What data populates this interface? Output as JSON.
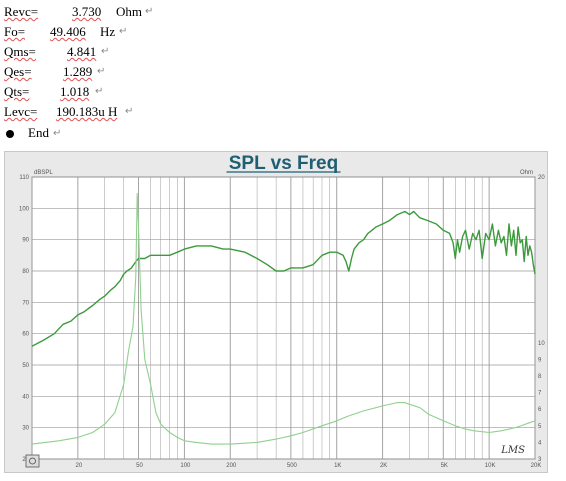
{
  "params": {
    "revc": {
      "key": "Revc=",
      "value": "3.730",
      "unit": "Ohm"
    },
    "fo": {
      "key": "Fo=",
      "value": "49.406",
      "unit": "Hz"
    },
    "qms": {
      "key": "Qms=",
      "value": "4.841"
    },
    "qes": {
      "key": "Qes=",
      "value": "1.289"
    },
    "qts": {
      "key": "Qts=",
      "value": "1.018"
    },
    "levc": {
      "key": "Levc=",
      "value": "190.183u H"
    }
  },
  "end_label": "End",
  "pilcrow": "↵",
  "colors": {
    "spl": "#3c9a3c",
    "impedance": "#8fd08f",
    "grid": "#9a9a9a",
    "title": "#1f5f73",
    "background": "#e9e9e9"
  },
  "chart_data": {
    "type": "line",
    "title": "SPL vs Freq",
    "ylabel_left": "dBSPL",
    "ylabel_right": "Ohm",
    "x_scale": "log",
    "xlim": [
      10,
      20000
    ],
    "ylim_left": [
      20,
      110
    ],
    "ylim_right": [
      3,
      20
    ],
    "grid": true,
    "x_ticks": [
      {
        "value": 10,
        "label": "Hz"
      },
      {
        "value": 20,
        "label": "20"
      },
      {
        "value": 50,
        "label": "50"
      },
      {
        "value": 100,
        "label": "100"
      },
      {
        "value": 200,
        "label": "200"
      },
      {
        "value": 500,
        "label": "500"
      },
      {
        "value": 1000,
        "label": "1K"
      },
      {
        "value": 2000,
        "label": "2K"
      },
      {
        "value": 5000,
        "label": "5K"
      },
      {
        "value": 10000,
        "label": "10K"
      },
      {
        "value": 20000,
        "label": "20K"
      }
    ],
    "y_ticks_left": [
      "20",
      "30",
      "40",
      "50",
      "60",
      "70",
      "80",
      "90",
      "100",
      "110"
    ],
    "y_ticks_right": [
      {
        "value": 3,
        "label": "3"
      },
      {
        "value": 4,
        "label": "4"
      },
      {
        "value": 5,
        "label": "5"
      },
      {
        "value": 6,
        "label": "6"
      },
      {
        "value": 7,
        "label": "7"
      },
      {
        "value": 8,
        "label": "8"
      },
      {
        "value": 9,
        "label": "9"
      },
      {
        "value": 10,
        "label": "10"
      },
      {
        "value": 20,
        "label": "20"
      }
    ],
    "logo": "LMS",
    "series": [
      {
        "axis": "left",
        "x": [
          10,
          12,
          14,
          16,
          18,
          20,
          22,
          25,
          28,
          30,
          33,
          35,
          38,
          40,
          42,
          45,
          48,
          50,
          55,
          60,
          70,
          80,
          90,
          100,
          120,
          150,
          180,
          200,
          250,
          300,
          350,
          400,
          450,
          500,
          600,
          700,
          800,
          900,
          1000,
          1100,
          1150,
          1200,
          1250,
          1300,
          1400,
          1500,
          1600,
          1700,
          1800,
          2000,
          2200,
          2500,
          2800,
          3000,
          3200,
          3500,
          4000,
          4500,
          5000,
          5500,
          5800,
          6000,
          6200,
          6400,
          6700,
          7000,
          7400,
          7800,
          8200,
          8600,
          9000,
          9500,
          10000,
          10500,
          11000,
          11500,
          12000,
          12500,
          13000,
          13500,
          14000,
          14500,
          15000,
          15500,
          16000,
          16500,
          17000,
          17500,
          18000,
          18500,
          19000,
          19500,
          20000
        ],
        "y": [
          56,
          58,
          60,
          63,
          64,
          66,
          67,
          69,
          71,
          72,
          74,
          75,
          77,
          79,
          80,
          81,
          83,
          84,
          84,
          85,
          85,
          85,
          86,
          87,
          88,
          88,
          87,
          87,
          86,
          84,
          82,
          80,
          80,
          81,
          81,
          82,
          85,
          86,
          86,
          85,
          83,
          80,
          84,
          87,
          89,
          90,
          92,
          93,
          94,
          95,
          96,
          98,
          99,
          98,
          99,
          97,
          96,
          95,
          93,
          92,
          89,
          84,
          90,
          86,
          91,
          93,
          87,
          92,
          90,
          93,
          84,
          92,
          90,
          95,
          88,
          93,
          89,
          91,
          85,
          95,
          88,
          93,
          85,
          94,
          89,
          90,
          83,
          91,
          85,
          88,
          86,
          82,
          79
        ]
      },
      {
        "axis": "right",
        "x": [
          10,
          15,
          20,
          25,
          30,
          35,
          40,
          43,
          46,
          48,
          49,
          50,
          52,
          55,
          60,
          65,
          70,
          80,
          90,
          100,
          120,
          150,
          200,
          300,
          400,
          500,
          600,
          800,
          1000,
          1200,
          1500,
          2000,
          2500,
          2800,
          3000,
          3500,
          4000,
          5000,
          6000,
          7000,
          8000,
          10000,
          12000,
          15000,
          20000
        ],
        "y": [
          3.9,
          4.1,
          4.3,
          4.6,
          5.1,
          5.8,
          7.5,
          9.5,
          11,
          14,
          19,
          17,
          12,
          9,
          7.5,
          5.8,
          5.1,
          4.6,
          4.3,
          4.1,
          4.0,
          3.9,
          3.9,
          4.0,
          4.2,
          4.4,
          4.6,
          5.0,
          5.3,
          5.6,
          5.9,
          6.2,
          6.4,
          6.4,
          6.3,
          6.1,
          5.7,
          5.3,
          5.0,
          4.8,
          4.7,
          4.6,
          4.7,
          4.9,
          5.3
        ]
      }
    ]
  }
}
